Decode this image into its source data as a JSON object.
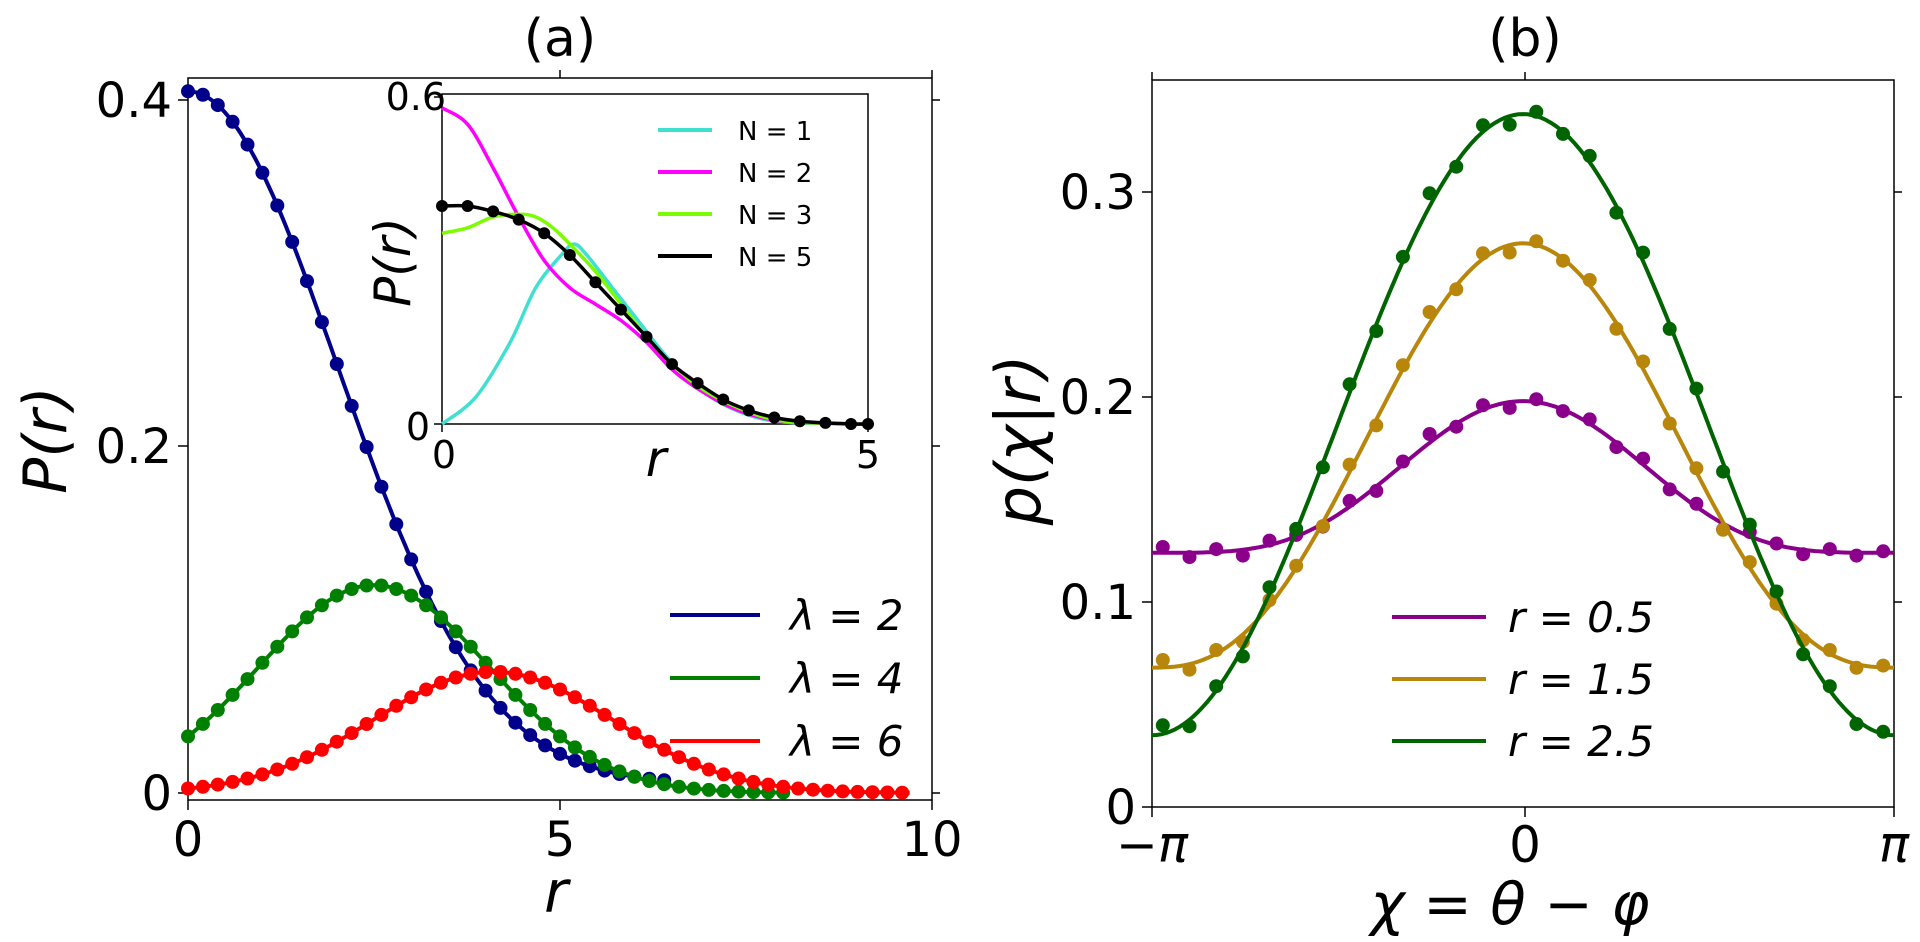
{
  "panel_a": {
    "title": "(a)",
    "xlabel": "r",
    "ylabel": "P(r)",
    "xticks": [
      "0",
      "5",
      "10"
    ],
    "yticks": [
      "0",
      "0.2",
      "0.4"
    ],
    "legend": [
      "λ = 2",
      "λ = 4",
      "λ = 6"
    ]
  },
  "inset": {
    "xlabel": "r",
    "ylabel": "P(r)",
    "xticks": [
      "0",
      "5"
    ],
    "yticks": [
      "0",
      "0.6"
    ],
    "legend": [
      "N = 1",
      "N = 2",
      "N = 3",
      "N = 5"
    ]
  },
  "panel_b": {
    "title": "(b)",
    "xlabel": "χ = θ − φ",
    "ylabel": "p(χ|r)",
    "xticks": [
      "−π",
      "0",
      "π"
    ],
    "yticks": [
      "0",
      "0.1",
      "0.2",
      "0.3"
    ],
    "legend": [
      "r = 0.5",
      "r = 1.5",
      "r = 2.5"
    ]
  },
  "chart_data": [
    {
      "type": "line",
      "title": "(a)",
      "xlabel": "r",
      "ylabel": "P(r)",
      "xlim": [
        0,
        10
      ],
      "ylim": [
        0,
        0.42
      ],
      "series": [
        {
          "name": "λ = 2",
          "color": "#00008b",
          "family": "gauss",
          "A": 0.4,
          "c": 0,
          "s": 2.0,
          "b": 0.005,
          "xmax": 6.0,
          "marker_xmax": 6.5
        },
        {
          "name": "λ = 4",
          "color": "#008000",
          "family": "gauss",
          "A": 0.12,
          "c": 2.5,
          "s": 1.55,
          "b": 0.0,
          "xmax": 8.0,
          "marker_xmax": 8.0
        },
        {
          "name": "λ = 6",
          "color": "#ff0000",
          "family": "gauss",
          "A": 0.07,
          "c": 4.1,
          "s": 1.6,
          "b": 0.0,
          "xmax": 9.7,
          "marker_xmax": 9.7
        }
      ]
    },
    {
      "type": "line",
      "title": "inset",
      "xlabel": "r",
      "ylabel": "P(r)",
      "xlim": [
        0,
        5
      ],
      "ylim": [
        0,
        0.6
      ],
      "series": [
        {
          "name": "N = 1",
          "color": "#40e0d0",
          "x": [
            0,
            0.4,
            0.8,
            1.1,
            1.4,
            1.55,
            1.7,
            2.0,
            2.3,
            2.6,
            2.9,
            3.2,
            3.5,
            3.8,
            4.2,
            5.0
          ],
          "y": [
            0,
            0.05,
            0.15,
            0.25,
            0.31,
            0.33,
            0.31,
            0.25,
            0.19,
            0.13,
            0.08,
            0.045,
            0.022,
            0.008,
            0.002,
            0.0
          ]
        },
        {
          "name": "N = 2",
          "color": "#ff00ff",
          "x": [
            0,
            0.3,
            0.6,
            0.9,
            1.2,
            1.5,
            1.8,
            2.1,
            2.4,
            2.7,
            3.0,
            3.4,
            3.8,
            4.2,
            5.0
          ],
          "y": [
            0.58,
            0.55,
            0.47,
            0.38,
            0.3,
            0.25,
            0.22,
            0.19,
            0.15,
            0.1,
            0.065,
            0.03,
            0.01,
            0.003,
            0.0
          ]
        },
        {
          "name": "N = 3",
          "color": "#7cfc00",
          "x": [
            0,
            0.3,
            0.6,
            0.9,
            1.1,
            1.3,
            1.5,
            1.8,
            2.1,
            2.4,
            2.7,
            3.0,
            3.4,
            3.8,
            4.2,
            5.0
          ],
          "y": [
            0.35,
            0.36,
            0.38,
            0.385,
            0.38,
            0.36,
            0.33,
            0.28,
            0.22,
            0.16,
            0.11,
            0.07,
            0.035,
            0.012,
            0.003,
            0.0
          ]
        },
        {
          "name": "N = 5",
          "color": "#000000",
          "markers": true,
          "x": [
            0,
            0.3,
            0.6,
            0.9,
            1.2,
            1.5,
            1.8,
            2.1,
            2.4,
            2.7,
            3.0,
            3.3,
            3.6,
            3.9,
            4.2,
            4.5,
            4.8,
            5.0
          ],
          "y": [
            0.4,
            0.4,
            0.39,
            0.375,
            0.35,
            0.31,
            0.26,
            0.21,
            0.16,
            0.11,
            0.075,
            0.045,
            0.025,
            0.012,
            0.005,
            0.002,
            0.0,
            0.0
          ]
        }
      ]
    },
    {
      "type": "line",
      "title": "(b)",
      "xlabel": "χ = θ − φ",
      "ylabel": "p(χ|r)",
      "xlim": [
        -3.1416,
        3.1416
      ],
      "ylim": [
        0,
        0.355
      ],
      "series": [
        {
          "name": "r = 0.5",
          "color": "#8b008b",
          "offset": 0.161,
          "amp": 0.037,
          "k": 2.0
        },
        {
          "name": "r = 1.5",
          "color": "#b8860b",
          "offset": 0.1715,
          "amp": 0.1035,
          "k": 1.3
        },
        {
          "name": "r = 2.5",
          "color": "#006400",
          "offset": 0.1865,
          "amp": 0.1515,
          "k": 1.0
        }
      ]
    }
  ]
}
